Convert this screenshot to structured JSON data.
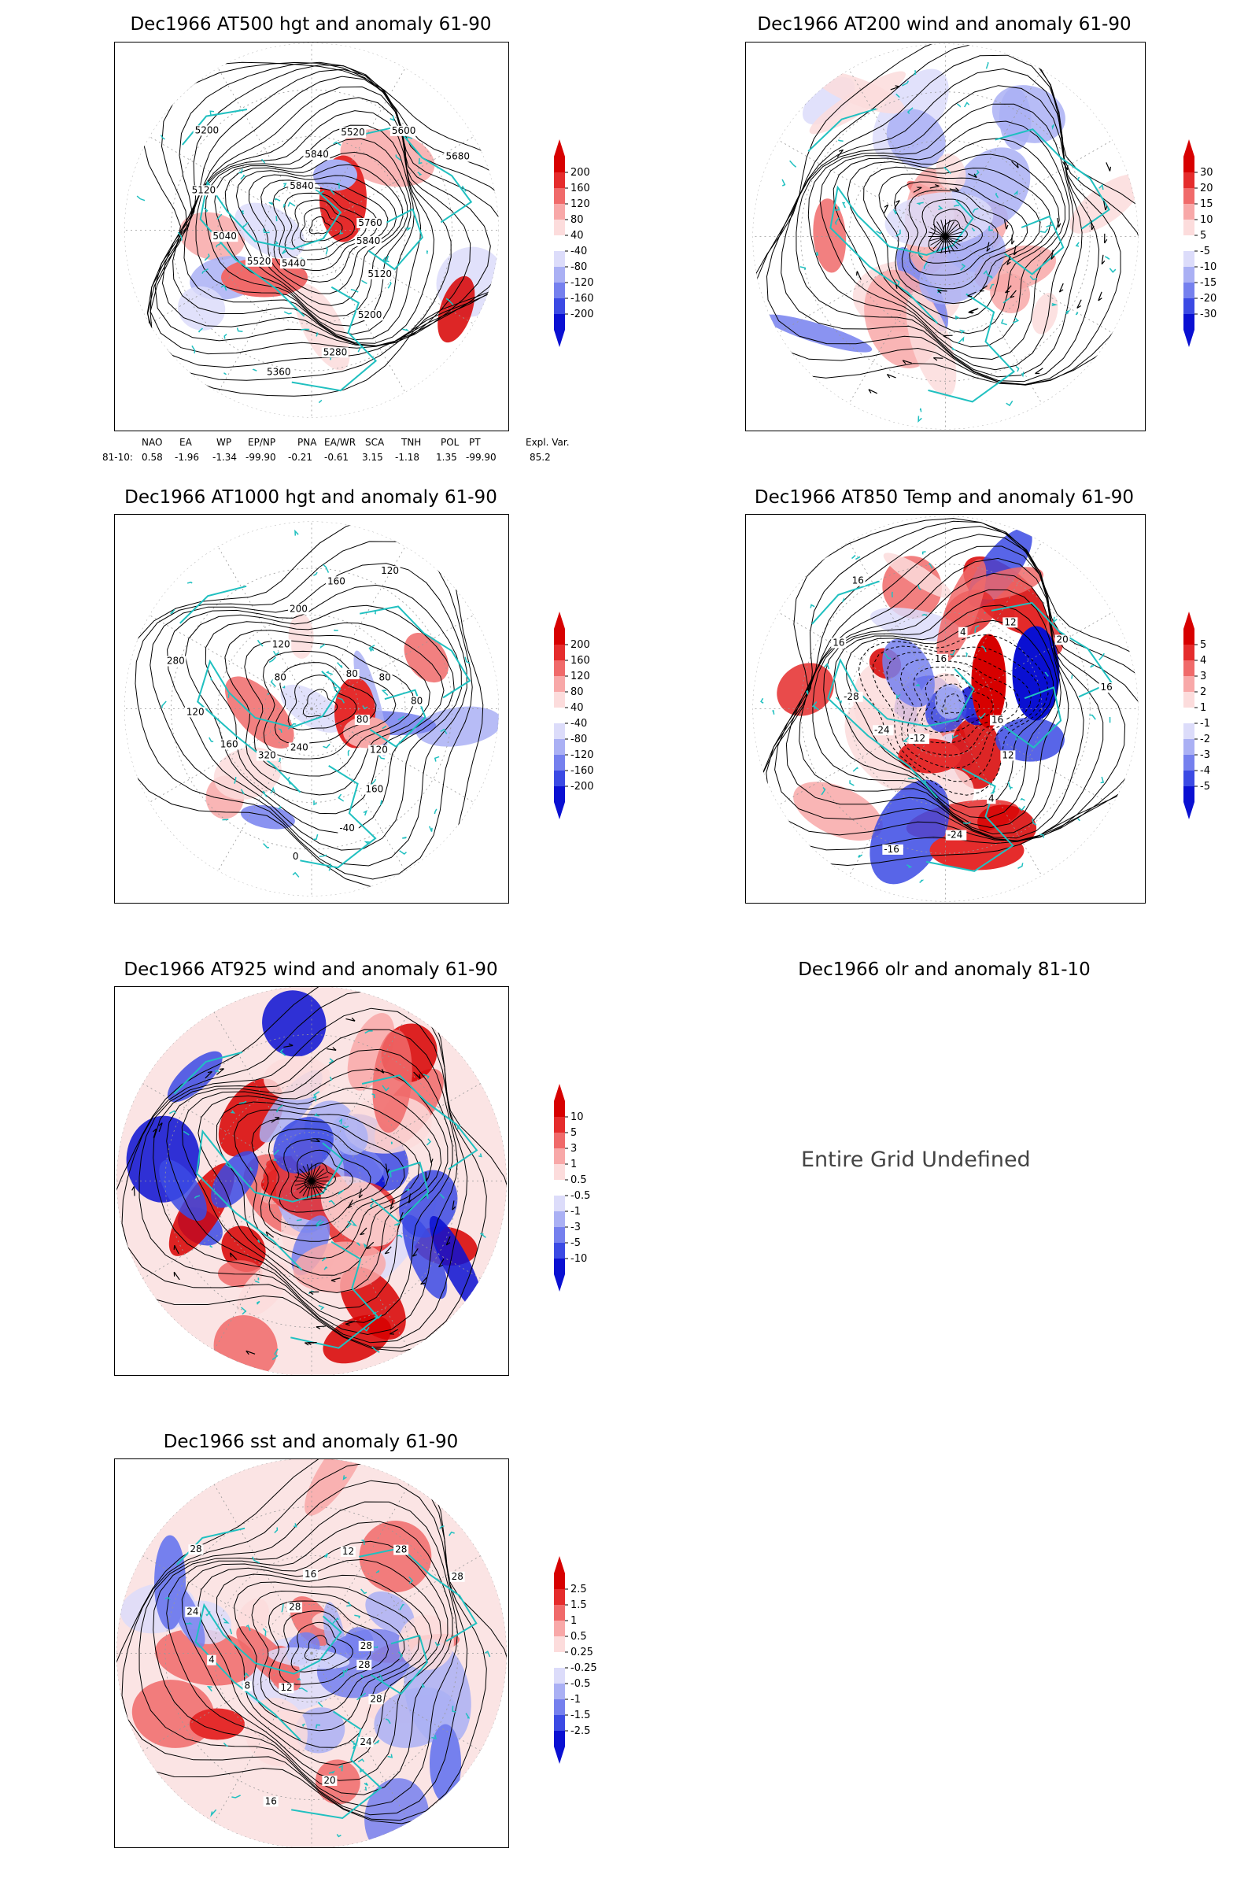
{
  "colors": {
    "coast": "#20c0c0",
    "contour": "#000000",
    "red_scale": [
      "#fcdcdc",
      "#f8a8a8",
      "#f06a6a",
      "#e52c2c",
      "#d70000"
    ],
    "blue_scale": [
      "#dcdcfa",
      "#aab0f4",
      "#7580ee",
      "#3b4ae4",
      "#0a10d2"
    ]
  },
  "panels": [
    {
      "id": "p500",
      "title": "Dec1966 AT500 hgt and anomaly 61-90",
      "legend": [
        "200",
        "160",
        "120",
        "80",
        "40",
        "-40",
        "-80",
        "-120",
        "-160",
        "-200"
      ],
      "contour_labels": [
        "5840",
        "5120",
        "5200",
        "5280",
        "5360",
        "5440",
        "5520",
        "5040",
        "5120",
        "5200",
        "5840",
        "5840",
        "5520",
        "5600",
        "5680",
        "5760"
      ]
    },
    {
      "id": "p200",
      "title": "Dec1966 AT200 wind and anomaly 61-90",
      "legend": [
        "30",
        "20",
        "15",
        "10",
        "5",
        "-5",
        "-10",
        "-15",
        "-20",
        "-30"
      ],
      "contour_labels": []
    },
    {
      "id": "p1000",
      "title": "Dec1966 AT1000 hgt and anomaly 61-90",
      "legend": [
        "200",
        "160",
        "120",
        "80",
        "40",
        "-40",
        "-80",
        "-120",
        "-160",
        "-200"
      ],
      "contour_labels": [
        "80",
        "120",
        "160",
        "-40",
        "0",
        "240",
        "320",
        "160",
        "120",
        "280",
        "80",
        "120",
        "200",
        "160",
        "120",
        "80",
        "80",
        "80"
      ]
    },
    {
      "id": "p850",
      "title": "Dec1966 AT850 Temp and anomaly 61-90",
      "legend": [
        "5",
        "4",
        "3",
        "2",
        "1",
        "-1",
        "-2",
        "-3",
        "-4",
        "-5"
      ],
      "contour_labels": [
        "16",
        "12",
        "4",
        "-24",
        "-16",
        "-12",
        "-24",
        "-28",
        "16",
        "16",
        "16",
        "4",
        "12",
        "20",
        "16"
      ]
    },
    {
      "id": "p925",
      "title": "Dec1966 AT925 wind and anomaly 61-90",
      "legend": [
        "10",
        "5",
        "3",
        "1",
        "0.5",
        "-0.5",
        "-1",
        "-3",
        "-5",
        "-10"
      ],
      "contour_labels": []
    },
    {
      "id": "psst",
      "title": "Dec1966 sst and anomaly 61-90",
      "legend": [
        "2.5",
        "1.5",
        "1",
        "0.5",
        "0.25",
        "-0.25",
        "-0.5",
        "-1",
        "-1.5",
        "-2.5"
      ],
      "contour_labels": [
        "28",
        "28",
        "24",
        "20",
        "16",
        "12",
        "8",
        "4",
        "24",
        "28",
        "28",
        "16",
        "12",
        "28",
        "28",
        "28"
      ]
    }
  ],
  "olr": {
    "title": "Dec1966 olr and anomaly 81-10",
    "message": "Entire Grid Undefined"
  },
  "indices": {
    "row_label": "81-10:",
    "names": [
      "NAO",
      "EA",
      "WP",
      "EP/NP",
      "PNA",
      "EA/WR",
      "SCA",
      "TNH",
      "POL",
      "PT",
      "Expl. Var."
    ],
    "values": [
      "0.58",
      "-1.96",
      "-1.34",
      "-99.90",
      "-0.21",
      "-0.61",
      "3.15",
      "-1.18",
      "1.35",
      "-99.90",
      "85.2"
    ]
  }
}
